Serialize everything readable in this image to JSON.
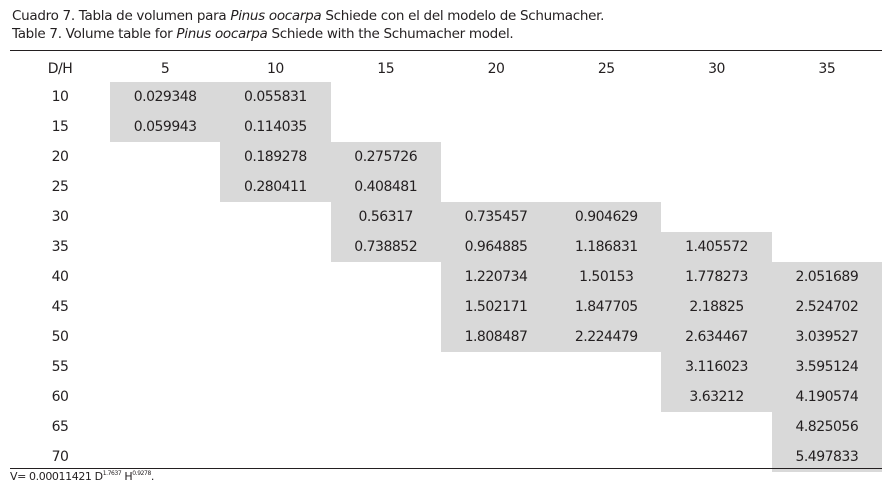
{
  "caption": {
    "es_pre": "Cuadro 7. Tabla de volumen para ",
    "es_species": "Pinus oocarpa",
    "es_post": " Schiede con el del modelo de Schumacher.",
    "en_pre": "Table 7. Volume table for ",
    "en_species": "Pinus oocarpa",
    "en_post": " Schiede with the Schumacher model."
  },
  "table": {
    "corner": "D/H",
    "columns": [
      "5",
      "10",
      "15",
      "20",
      "25",
      "30",
      "35"
    ],
    "rows": [
      {
        "d": "10",
        "cells": [
          "0.029348",
          "0.055831",
          "",
          "",
          "",
          "",
          ""
        ]
      },
      {
        "d": "15",
        "cells": [
          "0.059943",
          "0.114035",
          "",
          "",
          "",
          "",
          ""
        ]
      },
      {
        "d": "20",
        "cells": [
          "",
          "0.189278",
          "0.275726",
          "",
          "",
          "",
          ""
        ]
      },
      {
        "d": "25",
        "cells": [
          "",
          "0.280411",
          "0.408481",
          "",
          "",
          "",
          ""
        ]
      },
      {
        "d": "30",
        "cells": [
          "",
          "",
          "0.56317",
          "0.735457",
          "0.904629",
          "",
          ""
        ]
      },
      {
        "d": "35",
        "cells": [
          "",
          "",
          "0.738852",
          "0.964885",
          "1.186831",
          "1.405572",
          ""
        ]
      },
      {
        "d": "40",
        "cells": [
          "",
          "",
          "",
          "1.220734",
          "1.50153",
          "1.778273",
          "2.051689"
        ]
      },
      {
        "d": "45",
        "cells": [
          "",
          "",
          "",
          "1.502171",
          "1.847705",
          "2.18825",
          "2.524702"
        ]
      },
      {
        "d": "50",
        "cells": [
          "",
          "",
          "",
          "1.808487",
          "2.224479",
          "2.634467",
          "3.039527"
        ]
      },
      {
        "d": "55",
        "cells": [
          "",
          "",
          "",
          "",
          "",
          "3.116023",
          "3.595124"
        ]
      },
      {
        "d": "60",
        "cells": [
          "",
          "",
          "",
          "",
          "",
          "3.63212",
          "4.190574"
        ]
      },
      {
        "d": "65",
        "cells": [
          "",
          "",
          "",
          "",
          "",
          "",
          "4.825056"
        ]
      },
      {
        "d": "70",
        "cells": [
          "",
          "",
          "",
          "",
          "",
          "",
          "5.497833"
        ]
      }
    ]
  },
  "footnote": {
    "prefix": "V= 0.00011421 D",
    "d_exp": "1.7637",
    "mid": " H",
    "h_exp": "0.9278",
    "suffix": "."
  },
  "colors": {
    "shade": "#d9d9d9",
    "text": "#231f20"
  }
}
